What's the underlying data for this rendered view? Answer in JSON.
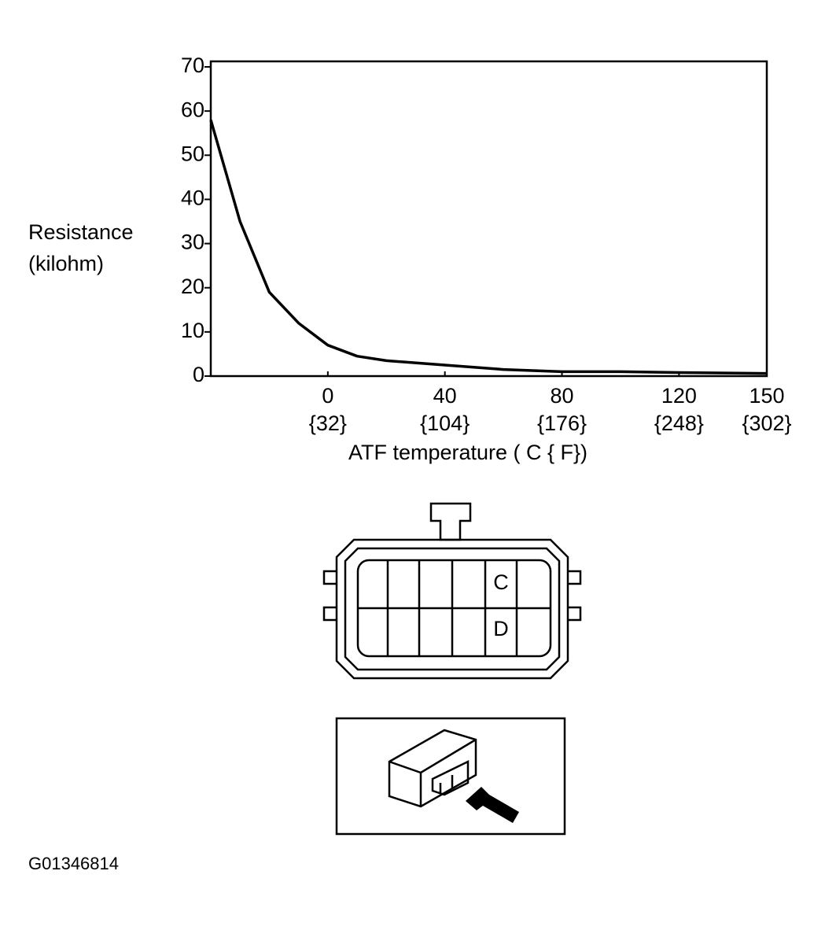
{
  "chart_data": {
    "type": "line",
    "ylabel": [
      "Resistance",
      "(kilohm)"
    ],
    "xlabel": "ATF temperature ( C { F})",
    "x": [
      -40,
      -30,
      -20,
      -10,
      0,
      10,
      20,
      40,
      60,
      80,
      100,
      120,
      150
    ],
    "values": [
      58,
      35,
      19,
      12,
      7,
      4.5,
      3.5,
      2.5,
      1.5,
      1,
      1,
      0.8,
      0.6
    ],
    "color": "#000000",
    "xlim": [
      -40,
      150
    ],
    "xticks": [
      0,
      40,
      80,
      120,
      150
    ],
    "xtick_sublabels": [
      "{32}",
      "{104}",
      "{176}",
      "{248}",
      "{302}"
    ],
    "ylim": [
      0,
      70
    ],
    "yticks": [
      0,
      10,
      20,
      30,
      40,
      50,
      60,
      70
    ]
  },
  "connector": {
    "pins": [
      "C",
      "D"
    ]
  },
  "figure_id": "G01346814"
}
